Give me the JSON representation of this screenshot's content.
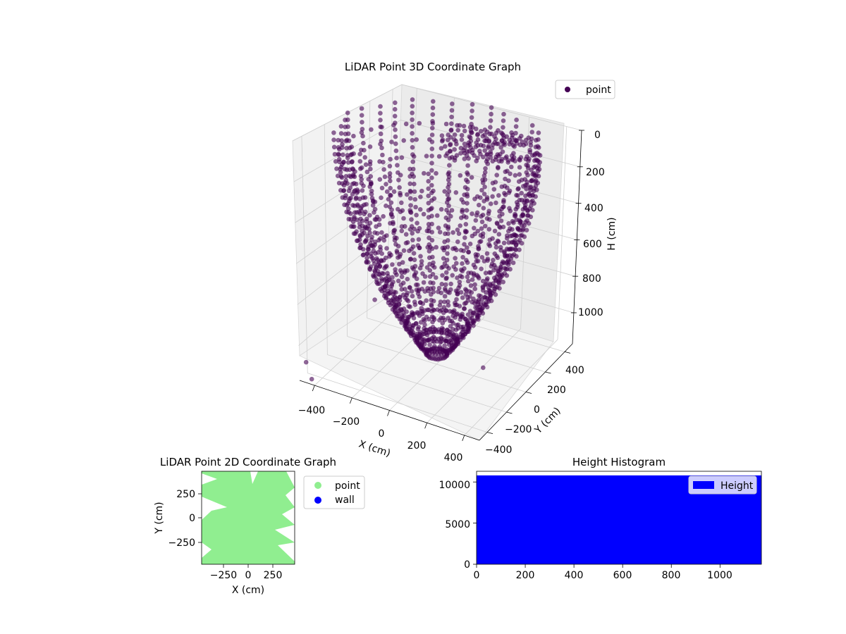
{
  "window": {
    "accent": "#440154"
  },
  "chart_data": [
    {
      "type": "scatter",
      "title": "LiDAR Point 3D Coordinate Graph",
      "xlabel": "X (cm)",
      "ylabel": "Y (cm)",
      "zlabel": "H (cm)",
      "x_ticks": [
        "−400",
        "−200",
        "0",
        "200",
        "400"
      ],
      "y_ticks": [
        "−400",
        "−200",
        "0",
        "200",
        "400"
      ],
      "z_ticks": [
        "0",
        "200",
        "400",
        "600",
        "800",
        "1000"
      ],
      "xlim": [
        -480,
        480
      ],
      "ylim": [
        -480,
        480
      ],
      "zlim": [
        0,
        1170
      ],
      "z_inverted": true,
      "grid": true,
      "legend": {
        "position": "top-right",
        "entries": [
          {
            "name": "point",
            "color": "#440154"
          }
        ]
      },
      "series": [
        {
          "name": "point",
          "color": "#440154",
          "opacity": 0.6
        }
      ]
    },
    {
      "type": "scatter",
      "title": "LiDAR Point 2D Coordinate Graph",
      "xlabel": "X (cm)",
      "ylabel": "Y (cm)",
      "x_ticks": [
        "−250",
        "0",
        "250"
      ],
      "y_ticks": [
        "250",
        "0",
        "−250"
      ],
      "xlim": [
        -480,
        480
      ],
      "ylim": [
        -480,
        480
      ],
      "grid": false,
      "legend": {
        "position": "outside-right",
        "entries": [
          {
            "name": "point",
            "color": "#90ee90"
          },
          {
            "name": "wall",
            "color": "#0000ff"
          }
        ]
      },
      "series": [
        {
          "name": "point",
          "color": "#90ee90"
        },
        {
          "name": "wall",
          "color": "#0000ff"
        }
      ]
    },
    {
      "type": "bar",
      "title": "Height Histogram",
      "x_ticks": [
        "0",
        "200",
        "400",
        "600",
        "800",
        "1000"
      ],
      "y_ticks": [
        "0",
        "5000",
        "10000"
      ],
      "xlim": [
        0,
        1170
      ],
      "ylim": [
        0,
        11300
      ],
      "legend": {
        "position": "top-right",
        "entries": [
          {
            "name": "Height",
            "color": "#0000ff"
          }
        ]
      },
      "series": [
        {
          "name": "Height",
          "color": "#0000ff",
          "bin_range": [
            0,
            1170
          ],
          "count": 10800
        }
      ]
    }
  ]
}
